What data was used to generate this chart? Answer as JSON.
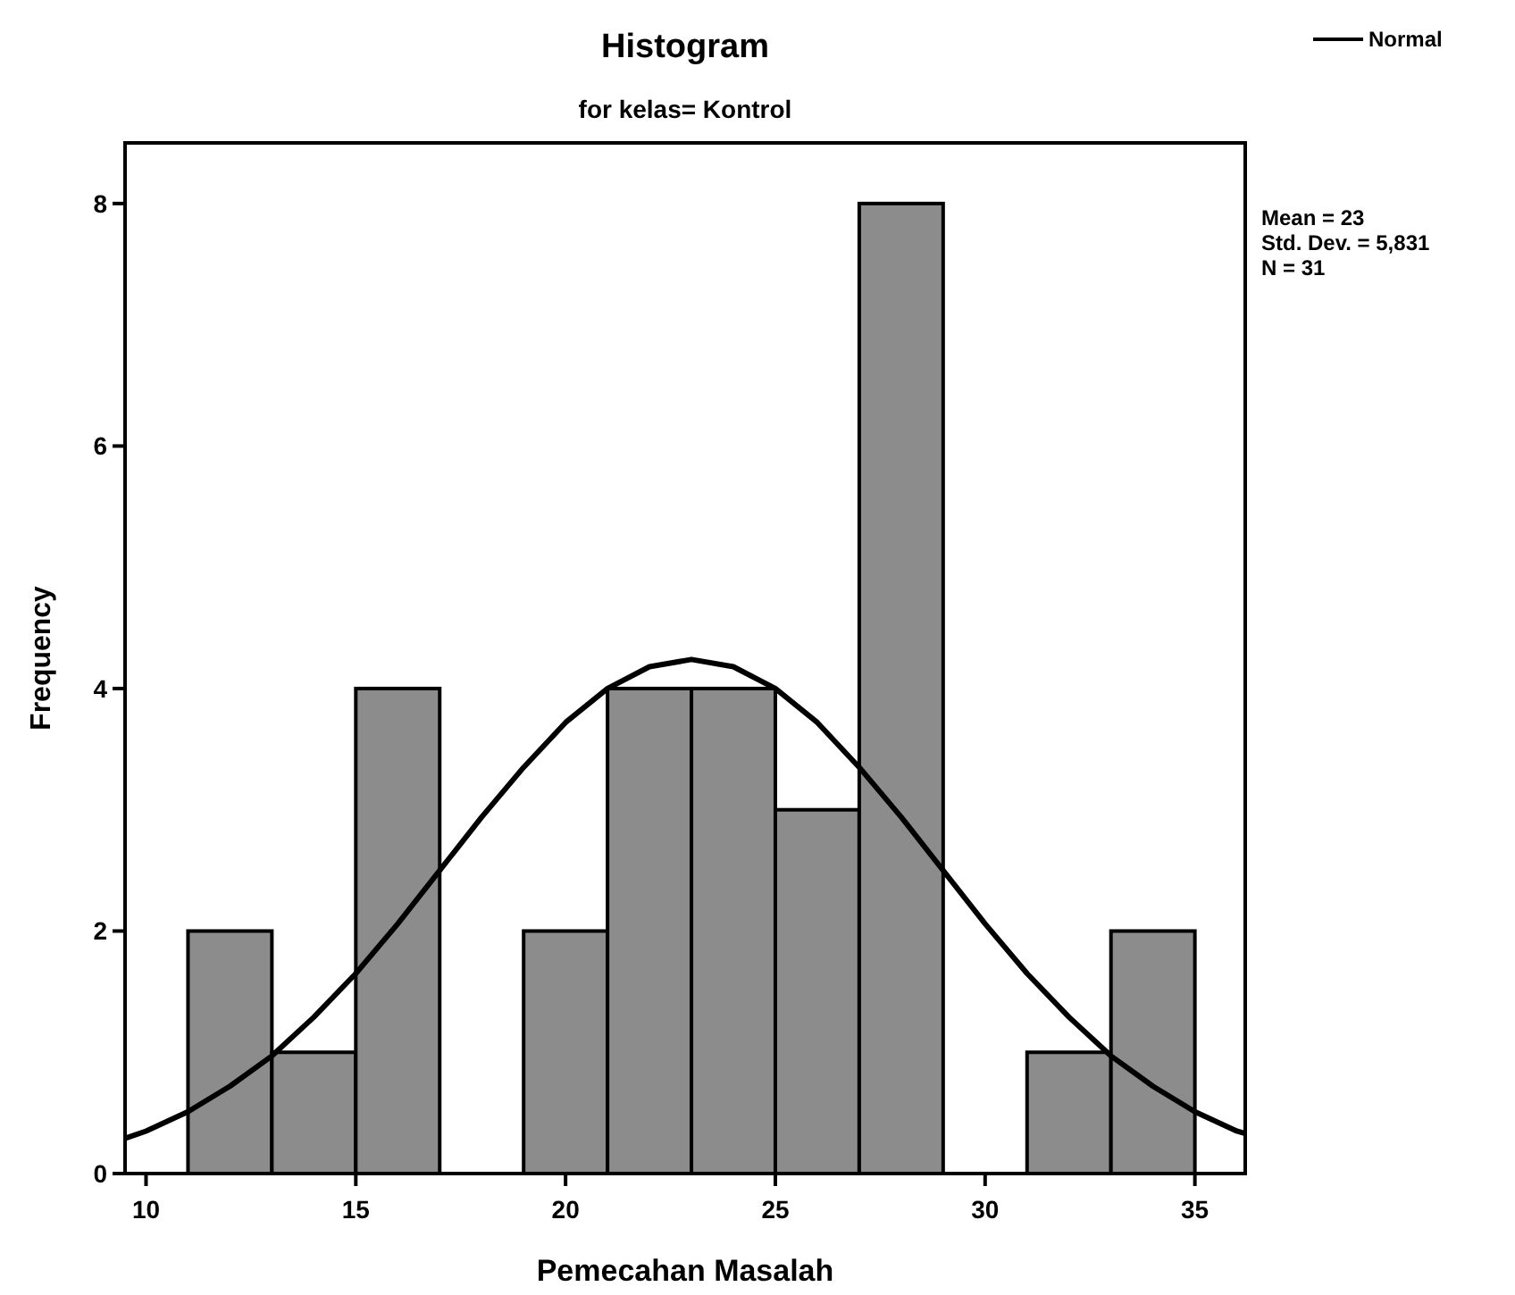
{
  "chart_data": {
    "type": "histogram",
    "title": "Histogram",
    "subtitle": "for kelas= Kontrol",
    "xlabel": "Pemecahan Masalah",
    "ylabel": "Frequency",
    "xlim": [
      9.5,
      36.2
    ],
    "xticks": [
      10,
      15,
      20,
      25,
      30,
      35
    ],
    "ylim": [
      0,
      8.5
    ],
    "yticks": [
      0,
      2,
      4,
      6,
      8
    ],
    "legend": "top right",
    "annotations": [
      "Mean = 23",
      "Std. Dev. = 5,831",
      "N = 31"
    ],
    "series": [
      {
        "color": "#8c8c8c",
        "bins": [
          11,
          13,
          15,
          17,
          19,
          21,
          23,
          25,
          27,
          29,
          31,
          33,
          35
        ],
        "values": [
          2,
          1,
          4,
          0,
          2,
          4,
          4,
          3,
          8,
          0,
          1,
          2
        ]
      },
      {
        "type": "line",
        "name": "Normal",
        "color": "#000000",
        "x": [
          9.5,
          10,
          11,
          12,
          13,
          14,
          15,
          16,
          17,
          18,
          19,
          20,
          21,
          22,
          23,
          24,
          25,
          26,
          27,
          28,
          29,
          30,
          31,
          32,
          33,
          34,
          35,
          36,
          36.2
        ],
        "values": [
          0.29,
          0.35,
          0.51,
          0.72,
          0.97,
          1.29,
          1.65,
          2.06,
          2.5,
          2.94,
          3.35,
          3.72,
          4.0,
          4.18,
          4.24,
          4.18,
          4.0,
          3.72,
          3.35,
          2.94,
          2.5,
          2.06,
          1.65,
          1.29,
          0.97,
          0.72,
          0.51,
          0.35,
          0.33
        ]
      }
    ]
  }
}
